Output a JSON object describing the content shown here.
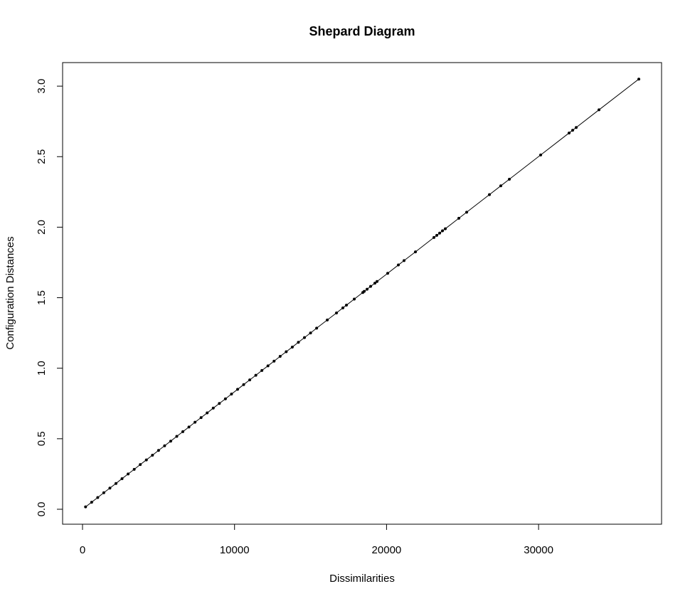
{
  "chart_data": {
    "type": "scatter",
    "title": "Shepard Diagram",
    "x_label": "Dissimilarities",
    "y_label": "Configuration Distances",
    "xlim": [
      -1310,
      38090
    ],
    "ylim": [
      -0.106,
      3.167
    ],
    "xticks": [
      0,
      10000,
      20000,
      30000
    ],
    "yticks": [
      {
        "value": 0,
        "label": "0.0"
      },
      0.5,
      {
        "value": 1,
        "label": "1.0"
      },
      1.5,
      {
        "value": 2,
        "label": "2.0"
      },
      2.5,
      {
        "value": 3,
        "label": "3.0"
      }
    ],
    "connect": true,
    "series": [
      {
        "color": "#000000",
        "x": [
          200,
          600,
          1000,
          1400,
          1800,
          2200,
          2600,
          3000,
          3400,
          3800,
          4200,
          4600,
          5000,
          5400,
          5800,
          6200,
          6600,
          7000,
          7400,
          7800,
          8200,
          8600,
          9000,
          9400,
          9800,
          10200,
          10600,
          11000,
          11400,
          11800,
          12200,
          12600,
          13000,
          13400,
          13800,
          14200,
          14600,
          15000,
          15400,
          16100,
          16706,
          17127,
          17361,
          17876,
          18437,
          18531,
          18718,
          18952,
          19233,
          19373,
          20075,
          20777,
          21151,
          21900,
          23117,
          23304,
          23491,
          23678,
          23865,
          24754,
          25269,
          26767,
          27515,
          28077,
          30136,
          32007,
          32241,
          32475,
          33973,
          36594
        ],
        "values": [
          0.017,
          0.05,
          0.083,
          0.117,
          0.15,
          0.183,
          0.217,
          0.25,
          0.283,
          0.317,
          0.35,
          0.383,
          0.417,
          0.45,
          0.483,
          0.517,
          0.55,
          0.583,
          0.617,
          0.65,
          0.683,
          0.717,
          0.75,
          0.783,
          0.817,
          0.85,
          0.884,
          0.917,
          0.95,
          0.984,
          1.017,
          1.05,
          1.084,
          1.117,
          1.15,
          1.184,
          1.217,
          1.25,
          1.284,
          1.342,
          1.392,
          1.428,
          1.447,
          1.49,
          1.537,
          1.545,
          1.56,
          1.58,
          1.603,
          1.615,
          1.673,
          1.732,
          1.763,
          1.825,
          1.927,
          1.942,
          1.958,
          1.974,
          1.989,
          2.063,
          2.106,
          2.231,
          2.293,
          2.34,
          2.512,
          2.668,
          2.687,
          2.707,
          2.832,
          3.05
        ]
      }
    ]
  }
}
